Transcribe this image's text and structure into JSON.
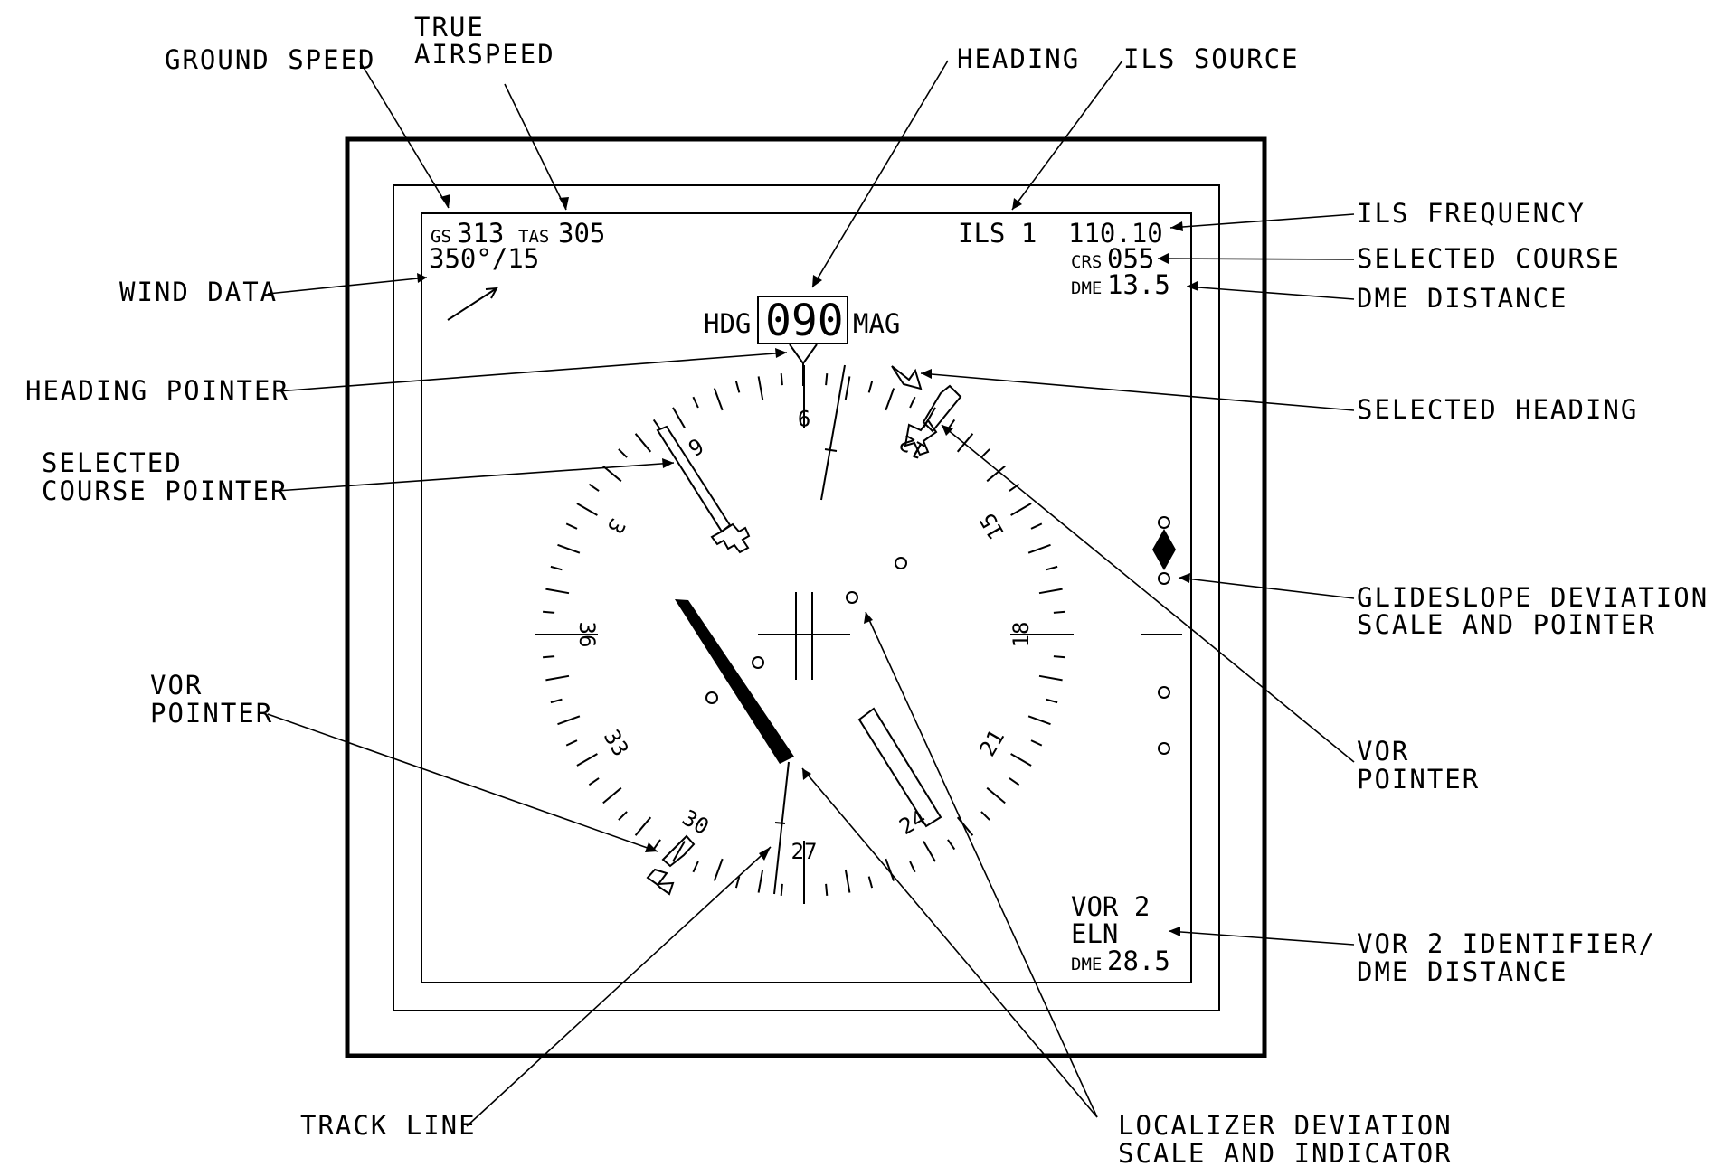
{
  "callouts": {
    "ground_speed": "GROUND SPEED",
    "true_airspeed_1": "TRUE",
    "true_airspeed_2": "AIRSPEED",
    "heading": "HEADING",
    "ils_source": "ILS SOURCE",
    "ils_frequency": "ILS FREQUENCY",
    "selected_course": "SELECTED COURSE",
    "dme_distance": "DME DISTANCE",
    "wind_data": "WIND DATA",
    "heading_pointer": "HEADING POINTER",
    "selected_heading": "SELECTED HEADING",
    "selected_course_pointer_1": "SELECTED",
    "selected_course_pointer_2": "COURSE POINTER",
    "glideslope_1": "GLIDESLOPE DEVIATION",
    "glideslope_2": "SCALE AND POINTER",
    "vor_pointer_left_1": "VOR",
    "vor_pointer_left_2": "POINTER",
    "vor_pointer_right_1": "VOR",
    "vor_pointer_right_2": "POINTER",
    "vor2_id_1": "VOR 2 IDENTIFIER/",
    "vor2_id_2": "DME DISTANCE",
    "track_line": "TRACK LINE",
    "localizer_1": "LOCALIZER DEVIATION",
    "localizer_2": "SCALE AND INDICATOR"
  },
  "display": {
    "gs_label": "GS",
    "gs_value": "313",
    "tas_label": "TAS",
    "tas_value": "305",
    "wind": "350°/15",
    "ils_source": "ILS 1",
    "ils_frequency": "110.10",
    "crs_label": "CRS",
    "crs_value": "055",
    "dme_label": "DME",
    "dme_value": "13.5",
    "hdg_label": "HDG",
    "hdg_value": "090",
    "mag_label": "MAG",
    "vor_id_1": "VOR 2",
    "vor_id_2": "ELN",
    "vor_dme_label": "DME",
    "vor_dme_value": "28.5"
  },
  "compass": {
    "heading_deg": 90,
    "labels": [
      {
        "text": "9",
        "hdg": 90
      },
      {
        "text": "12",
        "hdg": 120
      },
      {
        "text": "15",
        "hdg": 150
      },
      {
        "text": "18",
        "hdg": 180
      },
      {
        "text": "21",
        "hdg": 210
      },
      {
        "text": "24",
        "hdg": 240
      },
      {
        "text": "27",
        "hdg": 270
      },
      {
        "text": "30",
        "hdg": 300
      },
      {
        "text": "33",
        "hdg": 330
      },
      {
        "text": "36",
        "hdg": 360
      },
      {
        "text": "3",
        "hdg": 30
      },
      {
        "text": "6",
        "hdg": 60
      }
    ]
  }
}
